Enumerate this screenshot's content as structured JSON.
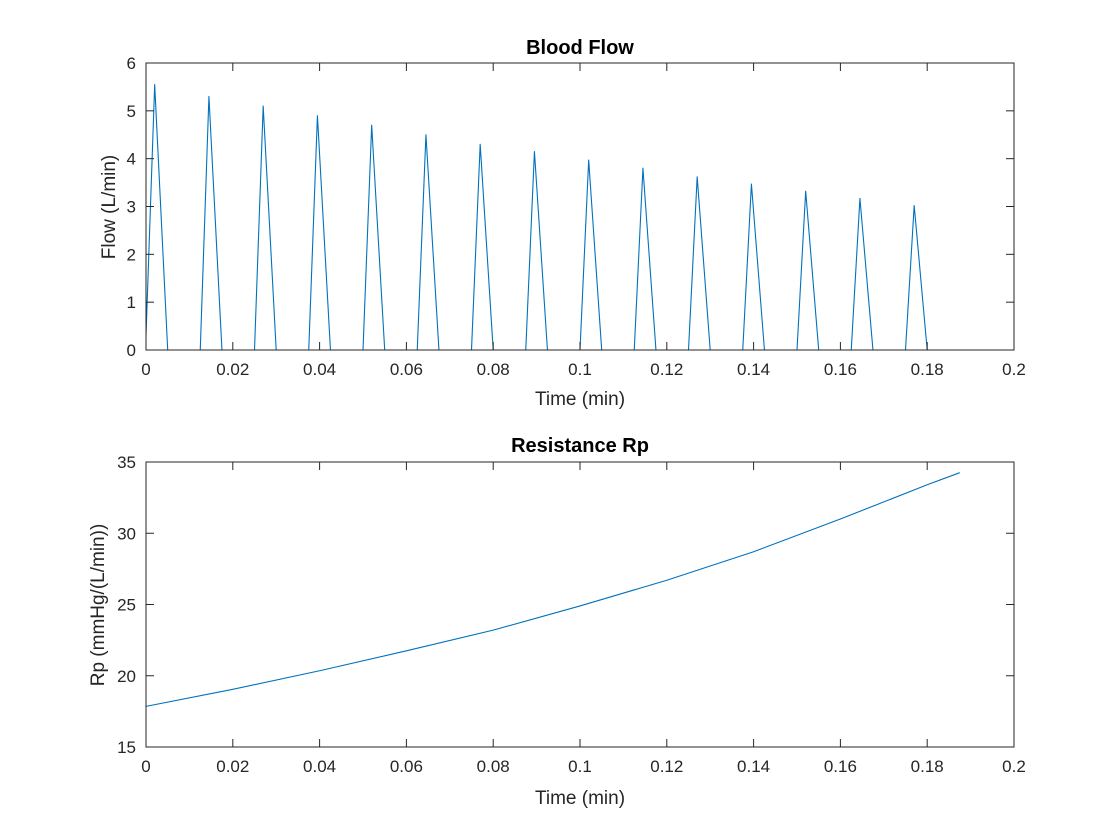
{
  "figure": {
    "background": "#ffffff",
    "axes_color": "#262626",
    "line_color": "#0072bd"
  },
  "chart_data": [
    {
      "type": "line",
      "title": "Blood Flow",
      "xlabel": "Time (min)",
      "ylabel": "Flow (L/min)",
      "xlim": [
        0,
        0.2
      ],
      "ylim": [
        0,
        6
      ],
      "xticks": [
        0,
        0.02,
        0.04,
        0.06,
        0.08,
        0.1,
        0.12,
        0.14,
        0.16,
        0.18,
        0.2
      ],
      "xtick_labels": [
        "0",
        "0.02",
        "0.04",
        "0.06",
        "0.08",
        "0.1",
        "0.12",
        "0.14",
        "0.16",
        "0.18",
        "0.2"
      ],
      "yticks": [
        0,
        1,
        2,
        3,
        4,
        5,
        6
      ],
      "ytick_labels": [
        "0",
        "1",
        "2",
        "3",
        "4",
        "5",
        "6"
      ],
      "grid": false,
      "series": [
        {
          "color": "#0072bd",
          "x": [
            0,
            0.002,
            0.005,
            0.0125,
            0.0145,
            0.0175,
            0.025,
            0.027,
            0.03,
            0.0375,
            0.0395,
            0.0425,
            0.05,
            0.052,
            0.055,
            0.0625,
            0.0645,
            0.0675,
            0.075,
            0.077,
            0.08,
            0.0875,
            0.0895,
            0.0925,
            0.1,
            0.102,
            0.105,
            0.1125,
            0.1145,
            0.1175,
            0.125,
            0.127,
            0.13,
            0.1375,
            0.1395,
            0.1425,
            0.15,
            0.152,
            0.155,
            0.1625,
            0.1645,
            0.1675,
            0.175,
            0.177,
            0.18,
            0.1875
          ],
          "y": [
            0.3,
            5.55,
            0,
            0,
            5.3,
            0,
            0,
            5.1,
            0,
            0,
            4.9,
            0,
            0,
            4.7,
            0,
            0,
            4.5,
            0,
            0,
            4.3,
            0,
            0,
            4.15,
            0,
            0,
            3.97,
            0,
            0,
            3.8,
            0,
            0,
            3.62,
            0,
            0,
            3.47,
            0,
            0,
            3.32,
            0,
            0,
            3.17,
            0,
            0,
            3.02,
            0,
            0
          ]
        }
      ]
    },
    {
      "type": "line",
      "title": "Resistance Rp",
      "xlabel": "Time (min)",
      "ylabel": "Rp (mmHg/(L/min))",
      "xlim": [
        0,
        0.2
      ],
      "ylim": [
        15,
        35
      ],
      "xticks": [
        0,
        0.02,
        0.04,
        0.06,
        0.08,
        0.1,
        0.12,
        0.14,
        0.16,
        0.18,
        0.2
      ],
      "xtick_labels": [
        "0",
        "0.02",
        "0.04",
        "0.06",
        "0.08",
        "0.1",
        "0.12",
        "0.14",
        "0.16",
        "0.18",
        "0.2"
      ],
      "yticks": [
        15,
        20,
        25,
        30,
        35
      ],
      "ytick_labels": [
        "15",
        "20",
        "25",
        "30",
        "35"
      ],
      "grid": false,
      "series": [
        {
          "color": "#0072bd",
          "x": [
            0,
            0.02,
            0.04,
            0.06,
            0.08,
            0.1,
            0.12,
            0.14,
            0.16,
            0.18,
            0.1875
          ],
          "y": [
            17.85,
            19.05,
            20.35,
            21.75,
            23.2,
            24.9,
            26.7,
            28.7,
            31.0,
            33.4,
            34.25
          ]
        }
      ]
    }
  ]
}
